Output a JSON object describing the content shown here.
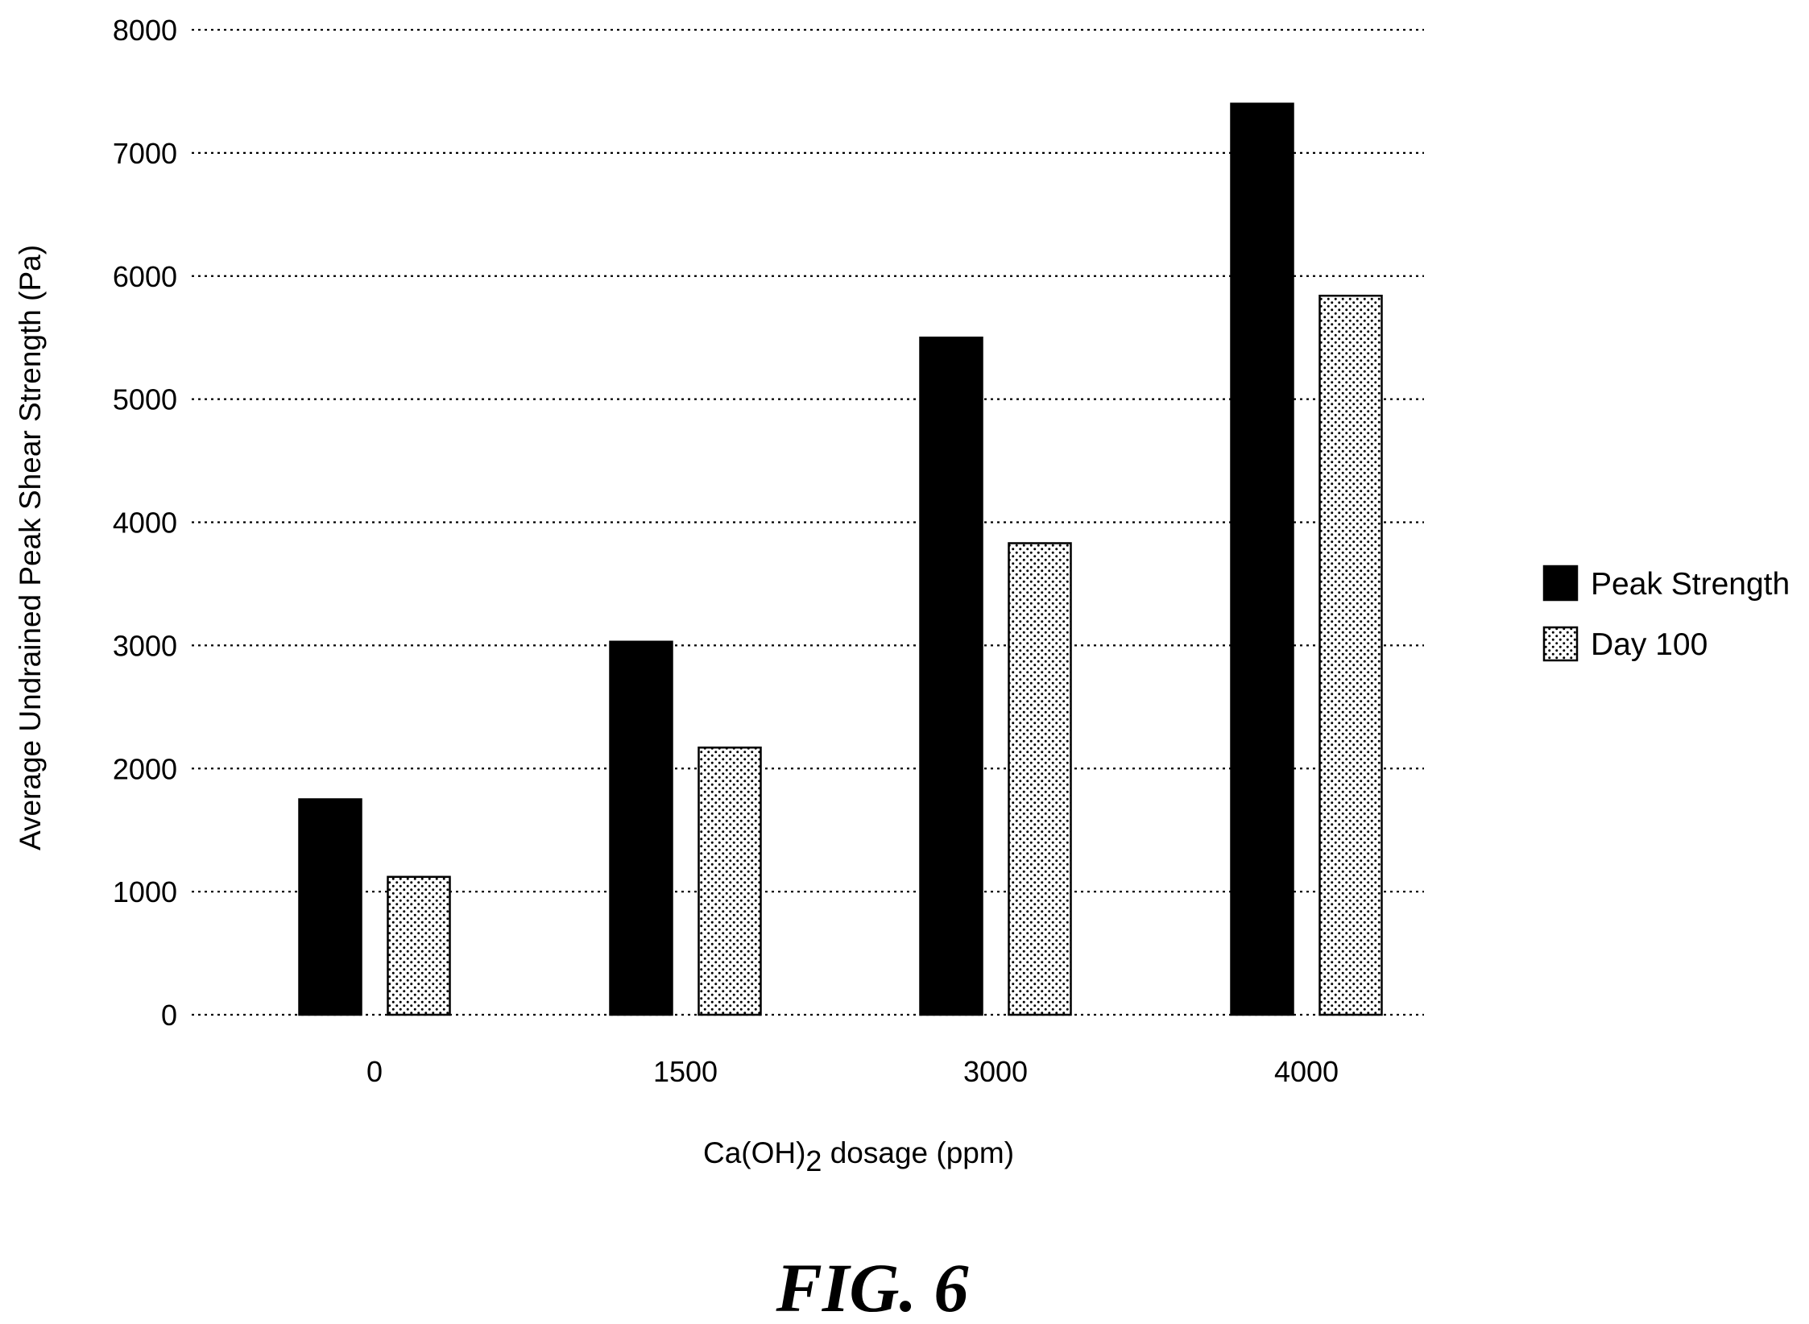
{
  "chart_data": {
    "type": "bar",
    "categories": [
      "0",
      "1500",
      "3000",
      "4000"
    ],
    "series": [
      {
        "name": "Peak Strength",
        "values": [
          1750,
          3030,
          5500,
          7400
        ],
        "color": "#000000",
        "fill_style": "solid"
      },
      {
        "name": "Day 100",
        "values": [
          1120,
          2170,
          3830,
          5840
        ],
        "color": "#ffffff",
        "fill_style": "dotted"
      }
    ],
    "xlabel": {
      "main": "Ca(OH)",
      "subscript": "2",
      "suffix": " dosage (ppm)"
    },
    "ylabel": "Average Undrained Peak Shear Strength (Pa)",
    "ylim": [
      0,
      8000
    ],
    "yticks": [
      "0",
      "1000",
      "2000",
      "3000",
      "4000",
      "5000",
      "6000",
      "7000",
      "8000"
    ],
    "grid": "horizontal-dotted",
    "legend_position": "right"
  },
  "figure": {
    "caption": "FIG. 6"
  }
}
